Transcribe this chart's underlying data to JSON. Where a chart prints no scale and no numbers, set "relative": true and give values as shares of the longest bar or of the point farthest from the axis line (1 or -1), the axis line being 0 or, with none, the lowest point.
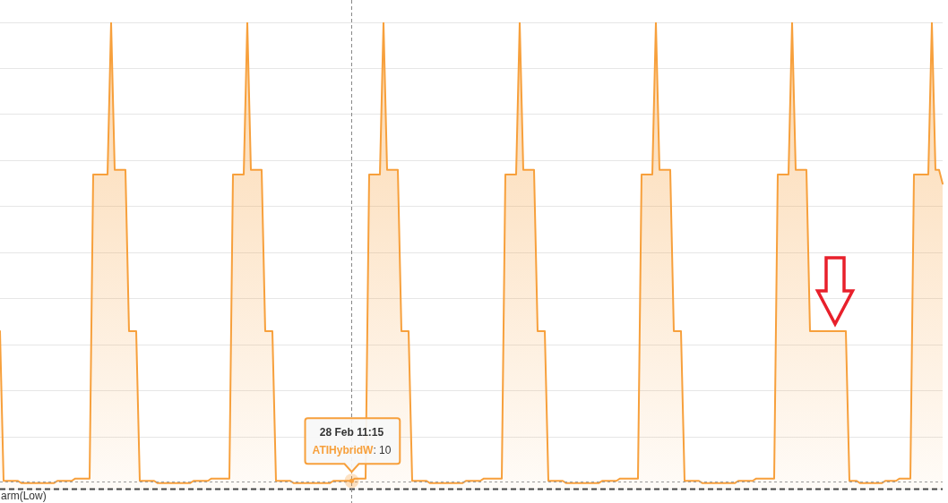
{
  "chart_data": {
    "type": "area",
    "relative": true,
    "tick_labels": false,
    "grid": "y",
    "categories": [
      null,
      null,
      null,
      null,
      null,
      null,
      null,
      null,
      null,
      null,
      null,
      null,
      null,
      null,
      null,
      null,
      null,
      null,
      null,
      null,
      null,
      null,
      null,
      null,
      null,
      null,
      null,
      null,
      null,
      null,
      null,
      null,
      null,
      null,
      null,
      null,
      null,
      null,
      null,
      null,
      null,
      null,
      null,
      null,
      null,
      null,
      null,
      null,
      null,
      null,
      null,
      null,
      null,
      null,
      null,
      null,
      null,
      null,
      null,
      null,
      null,
      null,
      null,
      null,
      null,
      null,
      null,
      null,
      null,
      null,
      null,
      null,
      null,
      null,
      null,
      null,
      null,
      null,
      null,
      null,
      null,
      null,
      null,
      null,
      null,
      null,
      null,
      null,
      null,
      null,
      null,
      null,
      null,
      null,
      null,
      null,
      null,
      null,
      null,
      null,
      null,
      null,
      null,
      null,
      null,
      null,
      null,
      null,
      null,
      null,
      null,
      null,
      null,
      null,
      null,
      null,
      null,
      null,
      null,
      null,
      null,
      null,
      null,
      null,
      null,
      null,
      null,
      null,
      null,
      null,
      null,
      null,
      null,
      null,
      null,
      null,
      null,
      null,
      null,
      null,
      null,
      null,
      null,
      null,
      null,
      null,
      null,
      null,
      null,
      null,
      null,
      null,
      null,
      null,
      null,
      null,
      null,
      null,
      null,
      null,
      null,
      null,
      null,
      null,
      null,
      null,
      null,
      null,
      null,
      null,
      null,
      null,
      null,
      null,
      null,
      null,
      null,
      null,
      null,
      null,
      null,
      null,
      null,
      null,
      null,
      null,
      null,
      null,
      null,
      null,
      null,
      null,
      null,
      null,
      null,
      null,
      null,
      null,
      null,
      null,
      null,
      null,
      null,
      null,
      null,
      null,
      null,
      null,
      null,
      null,
      null,
      null,
      null,
      null,
      null,
      null,
      null,
      null,
      null,
      null,
      null,
      null,
      null,
      null,
      null,
      null,
      null,
      null,
      null,
      null,
      null,
      null,
      null,
      null,
      null,
      null,
      null,
      null,
      null,
      null,
      null,
      null,
      null,
      null,
      null,
      null,
      null,
      null,
      null,
      null,
      null,
      null,
      null,
      null,
      null,
      null,
      null,
      null,
      null,
      null,
      null,
      null,
      null,
      null
    ],
    "series": [
      {
        "name": "ATIHybridW",
        "color": "#f7a03c",
        "values": [
          0.33,
          0.005,
          0.005,
          0.005,
          0.005,
          0.005,
          0,
          0,
          0,
          0,
          0,
          0,
          0,
          0,
          0,
          0,
          0.005,
          0.005,
          0.005,
          0.005,
          0.005,
          0.01,
          0.01,
          0.01,
          0.01,
          0.01,
          0.67,
          0.67,
          0.67,
          0.67,
          0.67,
          1,
          0.68,
          0.68,
          0.68,
          0.68,
          0.33,
          0.33,
          0.33,
          0.005,
          0.005,
          0.005,
          0.005,
          0.005,
          0,
          0,
          0,
          0,
          0,
          0,
          0,
          0,
          0,
          0,
          0.005,
          0.005,
          0.005,
          0.005,
          0.005,
          0.01,
          0.01,
          0.01,
          0.01,
          0.01,
          0.01,
          0.67,
          0.67,
          0.67,
          0.67,
          1,
          0.68,
          0.68,
          0.68,
          0.68,
          0.33,
          0.33,
          0.33,
          0.005,
          0.005,
          0.005,
          0.005,
          0.005,
          0,
          0,
          0,
          0,
          0,
          0,
          0,
          0,
          0,
          0,
          0,
          0.005,
          0.005,
          0.005,
          0.005,
          0.005,
          0.005,
          0.01,
          0.01,
          0.01,
          0.01,
          0.67,
          0.67,
          0.67,
          0.67,
          1,
          0.68,
          0.68,
          0.68,
          0.68,
          0.33,
          0.33,
          0.33,
          0.005,
          0.005,
          0.005,
          0.005,
          0.005,
          0,
          0,
          0,
          0,
          0,
          0,
          0,
          0,
          0,
          0,
          0.005,
          0.005,
          0.005,
          0.005,
          0.005,
          0.01,
          0.01,
          0.01,
          0.01,
          0.01,
          0.01,
          0.67,
          0.67,
          0.67,
          0.67,
          1,
          0.68,
          0.68,
          0.68,
          0.68,
          0.33,
          0.33,
          0.33,
          0.005,
          0.005,
          0.005,
          0.005,
          0.005,
          0,
          0,
          0,
          0,
          0,
          0,
          0,
          0,
          0,
          0,
          0.005,
          0.005,
          0.005,
          0.005,
          0.005,
          0.01,
          0.01,
          0.01,
          0.01,
          0.01,
          0.01,
          0.67,
          0.67,
          0.67,
          0.67,
          1,
          0.68,
          0.68,
          0.68,
          0.68,
          0.33,
          0.33,
          0.33,
          0.005,
          0.005,
          0.005,
          0.005,
          0.005,
          0,
          0,
          0,
          0,
          0,
          0,
          0,
          0,
          0,
          0,
          0.005,
          0.005,
          0.005,
          0.005,
          0.005,
          0.01,
          0.01,
          0.01,
          0.01,
          0.01,
          0.01,
          0.67,
          0.67,
          0.67,
          0.67,
          1,
          0.68,
          0.68,
          0.68,
          0.68,
          0.33,
          0.33,
          0.33,
          0.33,
          0.33,
          0.33,
          0.33,
          0.33,
          0.33,
          0.33,
          0.33,
          0.005,
          0.005,
          0.005,
          0,
          0,
          0,
          0,
          0,
          0,
          0,
          0.005,
          0.005,
          0.005,
          0.005,
          0.01,
          0.01,
          0.01,
          0.01,
          0.67,
          0.67,
          0.67,
          0.67,
          0.67,
          1,
          0.68,
          0.68,
          0.65
        ]
      }
    ],
    "ref_lines": [
      {
        "axis": "y",
        "value": 0.004,
        "color": "#999999",
        "line_style": "dashed"
      },
      {
        "axis": "y",
        "value": -0.012,
        "label": "arm(Low)",
        "color": "#444444",
        "line_style": "dashed"
      }
    ],
    "annotations": [
      "28 Feb 11:15",
      ": 10"
    ]
  }
}
